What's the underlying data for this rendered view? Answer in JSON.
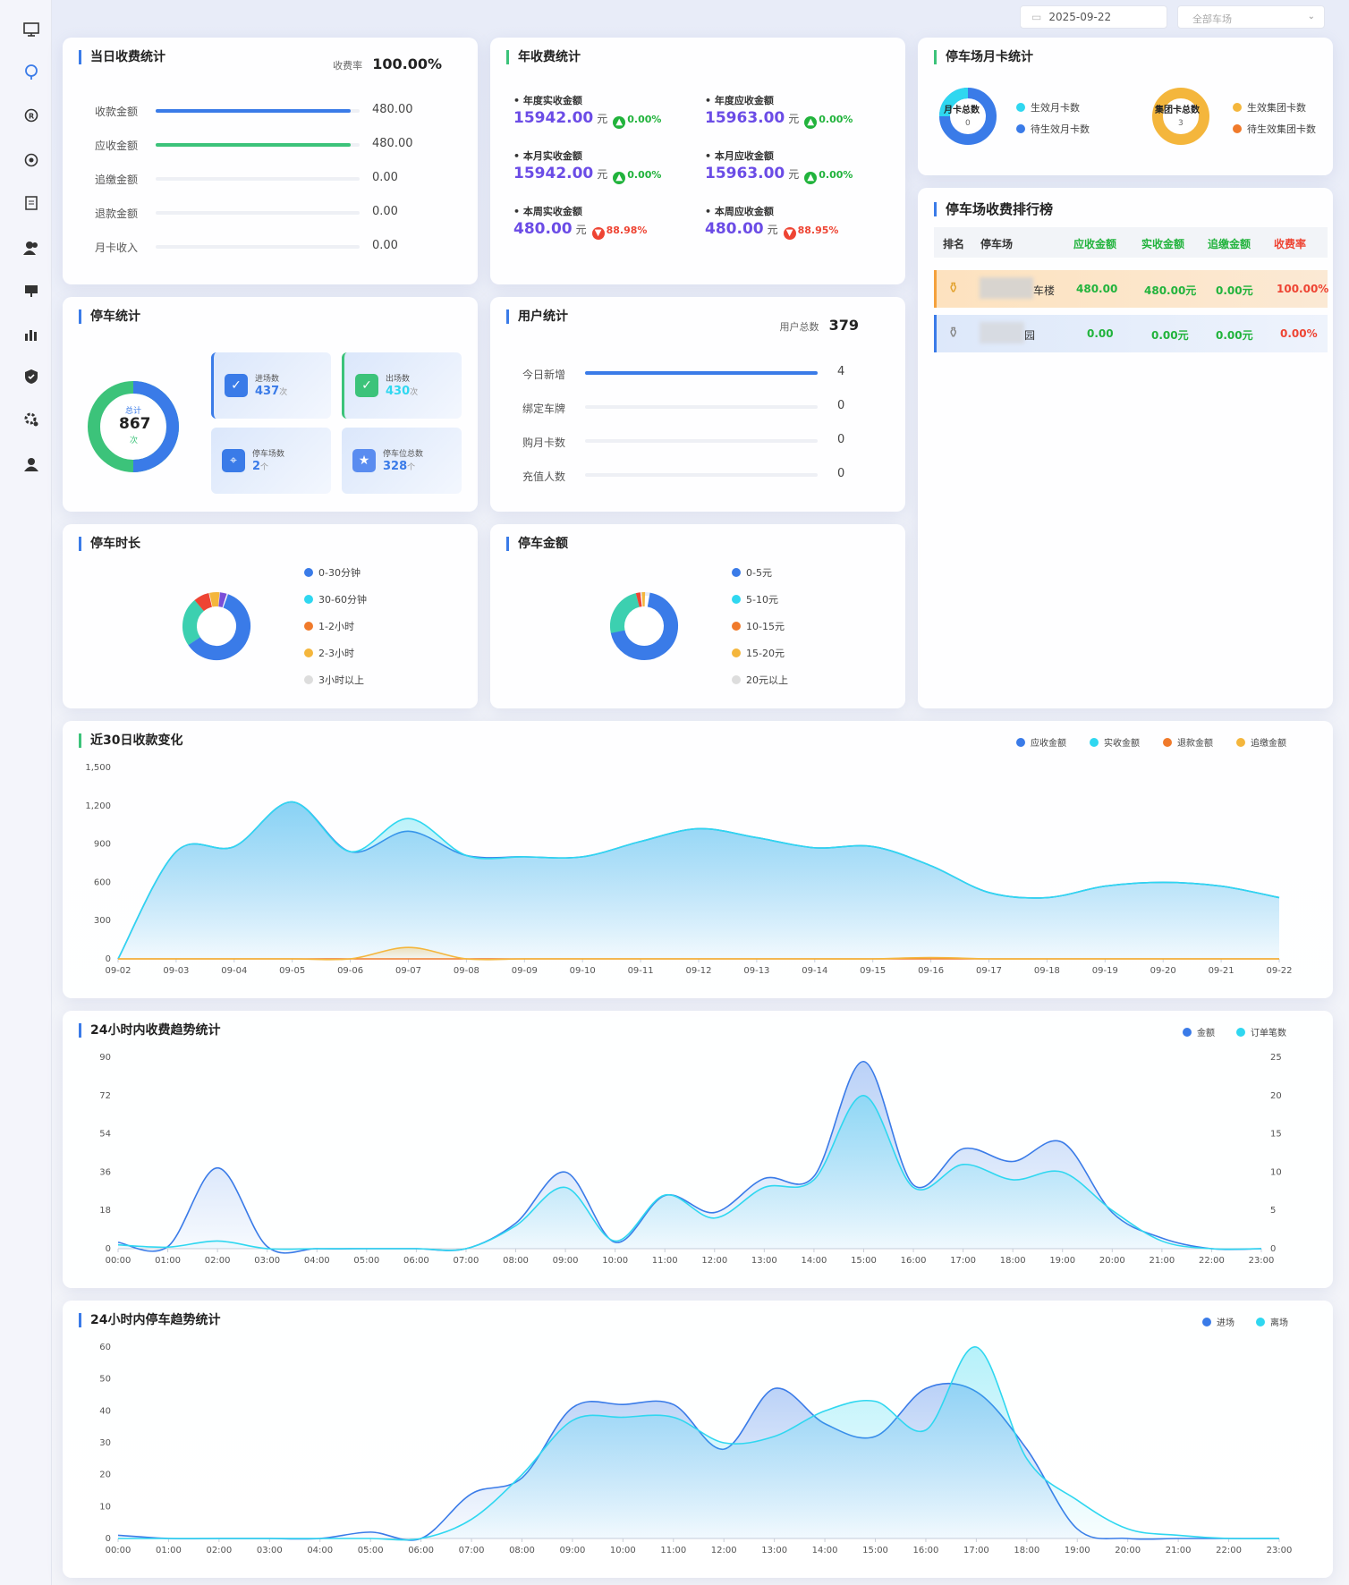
{
  "topbar": {
    "date": "2025-09-22",
    "lot_select": "全部车场"
  },
  "colors": {
    "blue": "#3a7be8",
    "cyan": "#2fd7f0",
    "orange": "#f07a2b",
    "yellow": "#f4b63c",
    "green": "#3cc37a",
    "red": "#ee4433",
    "purple": "#6b4ce6"
  },
  "daily": {
    "title": "当日收费统计",
    "rate_label": "收费率",
    "rate_value": "100.00%",
    "rows": [
      {
        "label": "收款金额",
        "value": "480.00",
        "fill": 1.0,
        "color": "#3a7be8"
      },
      {
        "label": "应收金额",
        "value": "480.00",
        "fill": 1.0,
        "color": "#3cc37a"
      },
      {
        "label": "追缴金额",
        "value": "0.00",
        "fill": 0,
        "color": "#3a7be8"
      },
      {
        "label": "退款金额",
        "value": "0.00",
        "fill": 0,
        "color": "#3a7be8"
      },
      {
        "label": "月卡收入",
        "value": "0.00",
        "fill": 0,
        "color": "#3a7be8"
      }
    ]
  },
  "annual": {
    "title": "年收费统计",
    "unit": "元",
    "items": [
      {
        "label": "年度实收金额",
        "value": "15942.00",
        "pct": "0.00%",
        "dir": "up"
      },
      {
        "label": "年度应收金额",
        "value": "15963.00",
        "pct": "0.00%",
        "dir": "up"
      },
      {
        "label": "本月实收金额",
        "value": "15942.00",
        "pct": "0.00%",
        "dir": "up"
      },
      {
        "label": "本月应收金额",
        "value": "15963.00",
        "pct": "0.00%",
        "dir": "up"
      },
      {
        "label": "本周实收金额",
        "value": "480.00",
        "pct": "88.98%",
        "dir": "down"
      },
      {
        "label": "本周应收金额",
        "value": "480.00",
        "pct": "88.95%",
        "dir": "down"
      }
    ]
  },
  "monthly_card": {
    "title": "停车场月卡统计",
    "card_total_label": "月卡总数",
    "card_total_value": "0",
    "group_total_label": "集团卡总数",
    "group_total_value": "3",
    "legend": [
      {
        "label": "生效月卡数",
        "color": "#2fd7f0"
      },
      {
        "label": "待生效月卡数",
        "color": "#3a7be8"
      },
      {
        "label": "生效集团卡数",
        "color": "#f4b63c"
      },
      {
        "label": "待生效集团卡数",
        "color": "#f07a2b"
      }
    ]
  },
  "parking": {
    "title": "停车统计",
    "total_label": "总计",
    "total_value": "867",
    "total_unit": "次",
    "boxes": [
      {
        "label": "进场数",
        "value": "437",
        "unit": "次",
        "icon": "check-icon"
      },
      {
        "label": "出场数",
        "value": "430",
        "unit": "次",
        "icon": "check-icon"
      },
      {
        "label": "停车场数",
        "value": "2",
        "unit": "个",
        "icon": "location-icon"
      },
      {
        "label": "停车位总数",
        "value": "328",
        "unit": "个",
        "icon": "star-icon"
      }
    ]
  },
  "users": {
    "title": "用户统计",
    "total_label": "用户总数",
    "total_value": "379",
    "rows": [
      {
        "label": "今日新增",
        "value": "4",
        "fill": 1.0
      },
      {
        "label": "绑定车牌",
        "value": "0",
        "fill": 0
      },
      {
        "label": "购月卡数",
        "value": "0",
        "fill": 0
      },
      {
        "label": "充值人数",
        "value": "0",
        "fill": 0
      }
    ]
  },
  "ranking": {
    "title": "停车场收费排行榜",
    "headers": [
      "排名",
      "停车场",
      "应收金额",
      "实收金额",
      "追缴金额",
      "收费率"
    ],
    "rows": [
      {
        "lot": "车楼",
        "due": "480.00",
        "paid": "480.00元",
        "recover": "0.00元",
        "rate": "100.00%"
      },
      {
        "lot": "园",
        "due": "0.00",
        "paid": "0.00元",
        "recover": "0.00元",
        "rate": "0.00%"
      }
    ]
  },
  "duration": {
    "title": "停车时长",
    "legend": [
      {
        "label": "0-30分钟",
        "color": "#3a7be8"
      },
      {
        "label": "30-60分钟",
        "color": "#2fd7f0"
      },
      {
        "label": "1-2小时",
        "color": "#f07a2b"
      },
      {
        "label": "2-3小时",
        "color": "#f4b63c"
      },
      {
        "label": "3小时以上",
        "color": "#dddddd"
      }
    ]
  },
  "amount": {
    "title": "停车金额",
    "legend": [
      {
        "label": "0-5元",
        "color": "#3a7be8"
      },
      {
        "label": "5-10元",
        "color": "#2fd7f0"
      },
      {
        "label": "10-15元",
        "color": "#f07a2b"
      },
      {
        "label": "15-20元",
        "color": "#f4b63c"
      },
      {
        "label": "20元以上",
        "color": "#dddddd"
      }
    ]
  },
  "chart_data": [
    {
      "type": "line",
      "title": "近30日收款变化",
      "categories": [
        "09-02",
        "09-03",
        "09-04",
        "09-05",
        "09-06",
        "09-07",
        "09-08",
        "09-09",
        "09-10",
        "09-11",
        "09-12",
        "09-13",
        "09-14",
        "09-15",
        "09-16",
        "09-17",
        "09-18",
        "09-19",
        "09-20",
        "09-21",
        "09-22"
      ],
      "ylim": [
        0,
        1500
      ],
      "yticks": [
        "0",
        "300",
        "600",
        "900",
        "1,200",
        "1,500"
      ],
      "series": [
        {
          "name": "应收金额",
          "color": "#3a7be8",
          "values": [
            0,
            840,
            880,
            1230,
            840,
            1000,
            810,
            800,
            800,
            920,
            1020,
            950,
            870,
            880,
            730,
            520,
            480,
            570,
            600,
            570,
            480
          ]
        },
        {
          "name": "实收金额",
          "color": "#2fd7f0",
          "values": [
            0,
            840,
            880,
            1230,
            840,
            1100,
            810,
            800,
            800,
            920,
            1020,
            950,
            870,
            880,
            730,
            520,
            480,
            570,
            600,
            570,
            480
          ]
        },
        {
          "name": "退款金额",
          "color": "#f07a2b",
          "values": [
            0,
            0,
            0,
            0,
            0,
            0,
            0,
            0,
            0,
            0,
            0,
            0,
            0,
            0,
            0,
            0,
            0,
            0,
            0,
            0,
            0
          ]
        },
        {
          "name": "追缴金额",
          "color": "#f4b63c",
          "values": [
            0,
            0,
            0,
            0,
            0,
            90,
            0,
            0,
            0,
            0,
            0,
            0,
            0,
            0,
            10,
            0,
            0,
            0,
            0,
            0,
            0
          ]
        }
      ]
    },
    {
      "type": "line",
      "title": "24小时内收费趋势统计",
      "categories": [
        "00:00",
        "01:00",
        "02:00",
        "03:00",
        "04:00",
        "05:00",
        "06:00",
        "07:00",
        "08:00",
        "09:00",
        "10:00",
        "11:00",
        "12:00",
        "13:00",
        "14:00",
        "15:00",
        "16:00",
        "17:00",
        "18:00",
        "19:00",
        "20:00",
        "21:00",
        "22:00",
        "23:00"
      ],
      "ylim": [
        0,
        90
      ],
      "yticks": [
        "0",
        "18",
        "36",
        "54",
        "72",
        "90"
      ],
      "y2lim": [
        0,
        25
      ],
      "y2ticks": [
        "0",
        "5",
        "10",
        "15",
        "20",
        "25"
      ],
      "series": [
        {
          "name": "金额",
          "color": "#3a7be8",
          "axis": "left",
          "values": [
            3,
            1,
            38,
            1,
            0,
            0,
            0,
            0,
            12,
            36,
            3,
            25,
            17,
            33,
            34,
            88,
            30,
            47,
            41,
            50,
            17,
            5,
            0,
            0
          ]
        },
        {
          "name": "订单笔数",
          "color": "#2fd7f0",
          "axis": "right",
          "values": [
            0.5,
            0.2,
            1,
            0,
            0,
            0,
            0,
            0,
            3,
            8,
            1,
            7,
            4,
            8,
            9,
            20,
            8,
            11,
            9,
            10,
            5,
            1,
            0,
            0
          ]
        }
      ]
    },
    {
      "type": "line",
      "title": "24小时内停车趋势统计",
      "categories": [
        "00:00",
        "01:00",
        "02:00",
        "03:00",
        "04:00",
        "05:00",
        "06:00",
        "07:00",
        "08:00",
        "09:00",
        "10:00",
        "11:00",
        "12:00",
        "13:00",
        "14:00",
        "15:00",
        "16:00",
        "17:00",
        "18:00",
        "19:00",
        "20:00",
        "21:00",
        "22:00",
        "23:00"
      ],
      "ylim": [
        0,
        60
      ],
      "yticks": [
        "0",
        "10",
        "20",
        "30",
        "40",
        "50",
        "60"
      ],
      "series": [
        {
          "name": "进场",
          "color": "#3a7be8",
          "values": [
            1,
            0,
            0,
            0,
            0,
            2,
            0,
            14,
            19,
            41,
            42,
            42,
            28,
            47,
            36,
            32,
            47,
            46,
            28,
            3,
            0,
            0,
            0,
            0
          ]
        },
        {
          "name": "离场",
          "color": "#2fd7f0",
          "values": [
            0,
            0,
            0,
            0,
            0,
            0,
            0,
            6,
            20,
            37,
            38,
            38,
            30,
            32,
            40,
            43,
            34,
            60,
            25,
            12,
            3,
            1,
            0,
            0
          ]
        }
      ]
    }
  ]
}
